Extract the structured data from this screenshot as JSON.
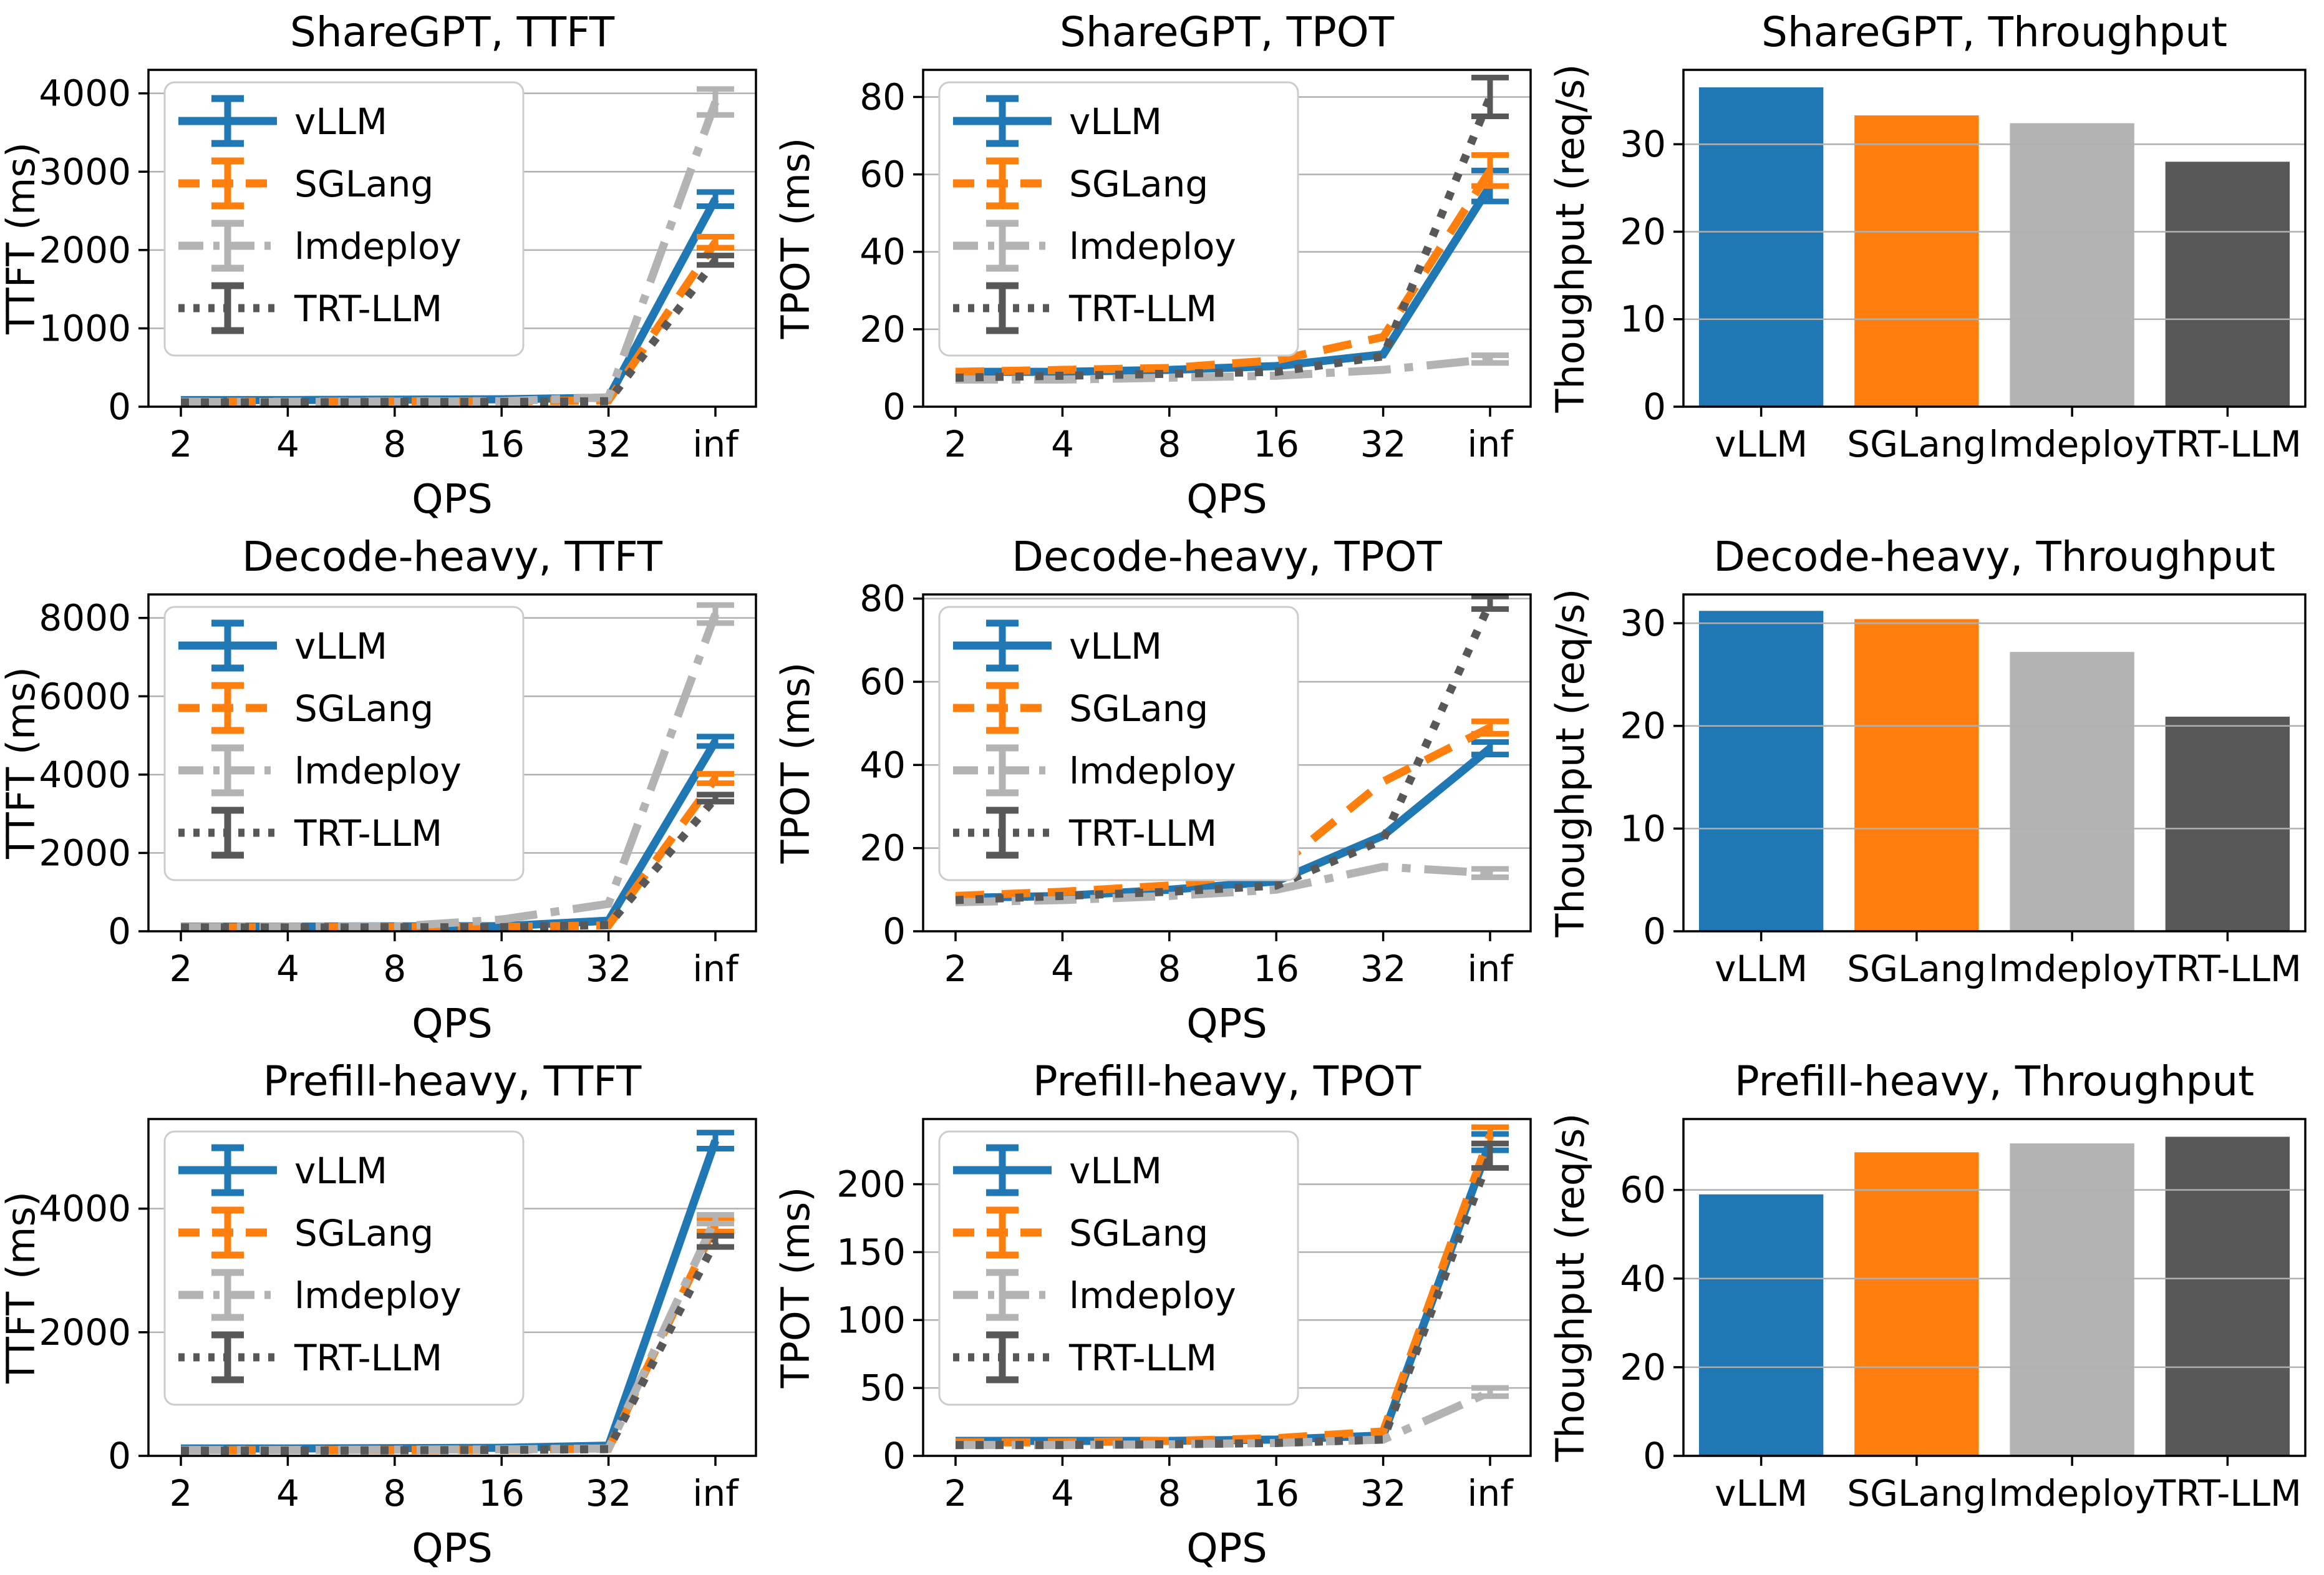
{
  "figure": {
    "background": "#ffffff",
    "grid_color": "#b0b0b0",
    "spine_color": "#000000",
    "rows": [
      "ShareGPT",
      "Decode-heavy",
      "Prefill-heavy"
    ],
    "legend_entries": [
      "vLLM",
      "SGLang",
      "lmdeploy",
      "TRT-LLM"
    ],
    "palette": {
      "vLLM": "#1f77b4",
      "SGLang": "#ff7f0e",
      "lmdeploy": "#b3b3b3",
      "TRT-LLM": "#585858"
    }
  },
  "chart_data": [
    {
      "type": "line",
      "title": "ShareGPT, TTFT",
      "xlabel": "QPS",
      "ylabel": "TTFT (ms)",
      "x_ticklabels": [
        "2",
        "4",
        "8",
        "16",
        "32",
        "inf"
      ],
      "yticks": [
        0,
        1000,
        2000,
        3000,
        4000
      ],
      "ylim": [
        0,
        4300
      ],
      "grid": true,
      "legend": true,
      "legend_position": "upper-left",
      "series": [
        {
          "name": "vLLM",
          "color": "#1f77b4",
          "style": "solid",
          "values": [
            85,
            85,
            90,
            95,
            115,
            2650
          ],
          "err_last": 90
        },
        {
          "name": "SGLang",
          "color": "#ff7f0e",
          "style": "dashed",
          "values": [
            65,
            65,
            70,
            70,
            80,
            2100
          ],
          "err_last": 70
        },
        {
          "name": "lmdeploy",
          "color": "#b3b3b3",
          "style": "dashdot",
          "values": [
            60,
            60,
            65,
            70,
            120,
            3890
          ],
          "err_last": 165
        },
        {
          "name": "TRT-LLM",
          "color": "#585858",
          "style": "dotted",
          "values": [
            55,
            55,
            60,
            60,
            70,
            1870
          ],
          "err_last": 60
        }
      ]
    },
    {
      "type": "line",
      "title": "ShareGPT, TPOT",
      "xlabel": "QPS",
      "ylabel": "TPOT (ms)",
      "x_ticklabels": [
        "2",
        "4",
        "8",
        "16",
        "32",
        "inf"
      ],
      "yticks": [
        0,
        20,
        40,
        60,
        80
      ],
      "ylim": [
        0,
        87
      ],
      "grid": true,
      "legend": true,
      "legend_position": "upper-left",
      "series": [
        {
          "name": "vLLM",
          "color": "#1f77b4",
          "style": "solid",
          "values": [
            9,
            9,
            9.5,
            10.5,
            13.5,
            57
          ],
          "err_last": 4
        },
        {
          "name": "SGLang",
          "color": "#ff7f0e",
          "style": "dashed",
          "values": [
            9,
            9.5,
            10,
            12,
            18,
            61
          ],
          "err_last": 4
        },
        {
          "name": "lmdeploy",
          "color": "#b3b3b3",
          "style": "dashdot",
          "values": [
            7,
            7,
            7.5,
            8,
            9.5,
            12.3
          ],
          "err_last": 1
        },
        {
          "name": "TRT-LLM",
          "color": "#585858",
          "style": "dotted",
          "values": [
            7.5,
            8,
            8.5,
            9,
            13,
            80
          ],
          "err_last": 5
        }
      ]
    },
    {
      "type": "bar",
      "title": "ShareGPT, Throughput",
      "ylabel": "Thoughput (req/s)",
      "categories": [
        "vLLM",
        "SGLang",
        "lmdeploy",
        "TRT-LLM"
      ],
      "values": [
        36.5,
        33.3,
        32.4,
        28.0
      ],
      "bar_colors": [
        "#1f77b4",
        "#ff7f0e",
        "#b3b3b3",
        "#585858"
      ],
      "yticks": [
        0,
        10,
        20,
        30
      ],
      "ylim": [
        0,
        38.5
      ],
      "grid": true,
      "legend": false
    },
    {
      "type": "line",
      "title": "Decode-heavy, TTFT",
      "xlabel": "QPS",
      "ylabel": "TTFT (ms)",
      "x_ticklabels": [
        "2",
        "4",
        "8",
        "16",
        "32",
        "inf"
      ],
      "yticks": [
        0,
        2000,
        4000,
        6000,
        8000
      ],
      "ylim": [
        0,
        8600
      ],
      "grid": true,
      "legend": true,
      "legend_position": "upper-left",
      "series": [
        {
          "name": "vLLM",
          "color": "#1f77b4",
          "style": "solid",
          "values": [
            120,
            120,
            125,
            130,
            270,
            4850
          ],
          "err_last": 120
        },
        {
          "name": "SGLang",
          "color": "#ff7f0e",
          "style": "dashed",
          "values": [
            100,
            100,
            105,
            110,
            150,
            3900
          ],
          "err_last": 120
        },
        {
          "name": "lmdeploy",
          "color": "#b3b3b3",
          "style": "dashdot",
          "values": [
            110,
            115,
            120,
            300,
            700,
            8100
          ],
          "err_last": 230
        },
        {
          "name": "TRT-LLM",
          "color": "#585858",
          "style": "dotted",
          "values": [
            95,
            95,
            100,
            105,
            160,
            3400
          ],
          "err_last": 90
        }
      ]
    },
    {
      "type": "line",
      "title": "Decode-heavy, TPOT",
      "xlabel": "QPS",
      "ylabel": "TPOT (ms)",
      "x_ticklabels": [
        "2",
        "4",
        "8",
        "16",
        "32",
        "inf"
      ],
      "yticks": [
        0,
        20,
        40,
        60,
        80
      ],
      "ylim": [
        0,
        81
      ],
      "grid": true,
      "legend": true,
      "legend_position": "upper-left",
      "series": [
        {
          "name": "vLLM",
          "color": "#1f77b4",
          "style": "solid",
          "values": [
            8,
            8.5,
            10,
            12,
            23,
            44
          ],
          "err_last": 1.5
        },
        {
          "name": "SGLang",
          "color": "#ff7f0e",
          "style": "dashed",
          "values": [
            8.5,
            9.5,
            11,
            15,
            36,
            49
          ],
          "err_last": 1.5
        },
        {
          "name": "lmdeploy",
          "color": "#b3b3b3",
          "style": "dashdot",
          "values": [
            7,
            7.5,
            8.5,
            10,
            15.5,
            14
          ],
          "err_last": 1
        },
        {
          "name": "TRT-LLM",
          "color": "#585858",
          "style": "dotted",
          "values": [
            7.5,
            8.5,
            9.5,
            11,
            22,
            79
          ],
          "err_last": 1.5
        }
      ]
    },
    {
      "type": "bar",
      "title": "Decode-heavy, Throughput",
      "ylabel": "Thoughput (req/s)",
      "categories": [
        "vLLM",
        "SGLang",
        "lmdeploy",
        "TRT-LLM"
      ],
      "values": [
        31.2,
        30.4,
        27.2,
        20.9
      ],
      "bar_colors": [
        "#1f77b4",
        "#ff7f0e",
        "#b3b3b3",
        "#585858"
      ],
      "yticks": [
        0,
        10,
        20,
        30
      ],
      "ylim": [
        0,
        32.8
      ],
      "grid": true,
      "legend": false
    },
    {
      "type": "line",
      "title": "Prefill-heavy, TTFT",
      "xlabel": "QPS",
      "ylabel": "TTFT (ms)",
      "x_ticklabels": [
        "2",
        "4",
        "8",
        "16",
        "32",
        "inf"
      ],
      "yticks": [
        0,
        2000,
        4000
      ],
      "ylim": [
        0,
        5450
      ],
      "grid": true,
      "legend": true,
      "legend_position": "upper-left",
      "series": [
        {
          "name": "vLLM",
          "color": "#1f77b4",
          "style": "solid",
          "values": [
            120,
            120,
            125,
            130,
            165,
            5100
          ],
          "err_last": 130
        },
        {
          "name": "SGLang",
          "color": "#ff7f0e",
          "style": "dashed",
          "values": [
            90,
            95,
            95,
            100,
            115,
            3740
          ],
          "err_last": 110
        },
        {
          "name": "lmdeploy",
          "color": "#b3b3b3",
          "style": "dashdot",
          "values": [
            95,
            95,
            100,
            105,
            120,
            3830
          ],
          "err_last": 70
        },
        {
          "name": "TRT-LLM",
          "color": "#585858",
          "style": "dotted",
          "values": [
            85,
            85,
            90,
            95,
            110,
            3470
          ],
          "err_last": 90
        }
      ]
    },
    {
      "type": "line",
      "title": "Prefill-heavy, TPOT",
      "xlabel": "QPS",
      "ylabel": "TPOT (ms)",
      "x_ticklabels": [
        "2",
        "4",
        "8",
        "16",
        "32",
        "inf"
      ],
      "yticks": [
        0,
        50,
        100,
        150,
        200
      ],
      "ylim": [
        0,
        248
      ],
      "grid": true,
      "legend": true,
      "legend_position": "upper-left",
      "series": [
        {
          "name": "vLLM",
          "color": "#1f77b4",
          "style": "solid",
          "values": [
            11,
            11,
            11,
            12,
            15,
            231
          ],
          "err_last": 6
        },
        {
          "name": "SGLang",
          "color": "#ff7f0e",
          "style": "dashed",
          "values": [
            10,
            10,
            11,
            13,
            18,
            236
          ],
          "err_last": 6
        },
        {
          "name": "lmdeploy",
          "color": "#b3b3b3",
          "style": "dashdot",
          "values": [
            8,
            8,
            8.5,
            9.5,
            12,
            47
          ],
          "err_last": 3
        },
        {
          "name": "TRT-LLM",
          "color": "#585858",
          "style": "dotted",
          "values": [
            8,
            8,
            8.5,
            9.5,
            12,
            221
          ],
          "err_last": 9
        }
      ]
    },
    {
      "type": "bar",
      "title": "Prefill-heavy, Throughput",
      "ylabel": "Thoughput (req/s)",
      "categories": [
        "vLLM",
        "SGLang",
        "lmdeploy",
        "TRT-LLM"
      ],
      "values": [
        59.0,
        68.5,
        70.5,
        72.0
      ],
      "bar_colors": [
        "#1f77b4",
        "#ff7f0e",
        "#b3b3b3",
        "#585858"
      ],
      "yticks": [
        0,
        20,
        40,
        60
      ],
      "ylim": [
        0,
        76
      ],
      "grid": true,
      "legend": false
    }
  ]
}
